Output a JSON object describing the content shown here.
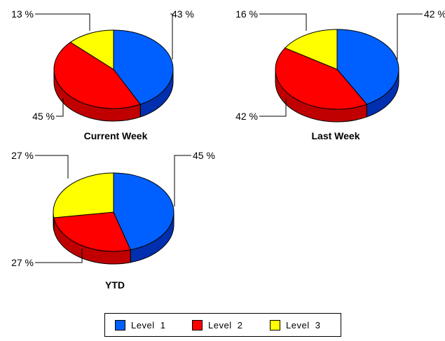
{
  "chart_data": [
    {
      "type": "pie",
      "title": "Current Week",
      "categories": [
        "Level 1",
        "Level 2",
        "Level 3"
      ],
      "values": [
        43,
        45,
        13
      ],
      "labels": [
        "43 %",
        "45 %",
        "13 %"
      ],
      "colors": [
        "#0060ff",
        "#ff0000",
        "#ffff00"
      ],
      "style": "3d"
    },
    {
      "type": "pie",
      "title": "Last Week",
      "categories": [
        "Level 1",
        "Level 2",
        "Level 3"
      ],
      "values": [
        42,
        42,
        16
      ],
      "labels": [
        "42 %",
        "42 %",
        "16 %"
      ],
      "colors": [
        "#0060ff",
        "#ff0000",
        "#ffff00"
      ],
      "style": "3d"
    },
    {
      "type": "pie",
      "title": "YTD",
      "categories": [
        "Level 1",
        "Level 2",
        "Level 3"
      ],
      "values": [
        45,
        27,
        27
      ],
      "labels": [
        "45 %",
        "27 %",
        "27 %"
      ],
      "colors": [
        "#0060ff",
        "#ff0000",
        "#ffff00"
      ],
      "style": "3d"
    }
  ],
  "legend": {
    "placement": "bottom-center",
    "items": [
      {
        "label": "Level  1",
        "color": "#0060ff"
      },
      {
        "label": "Level  2",
        "color": "#ff0000"
      },
      {
        "label": "Level  3",
        "color": "#ffff00"
      }
    ]
  }
}
